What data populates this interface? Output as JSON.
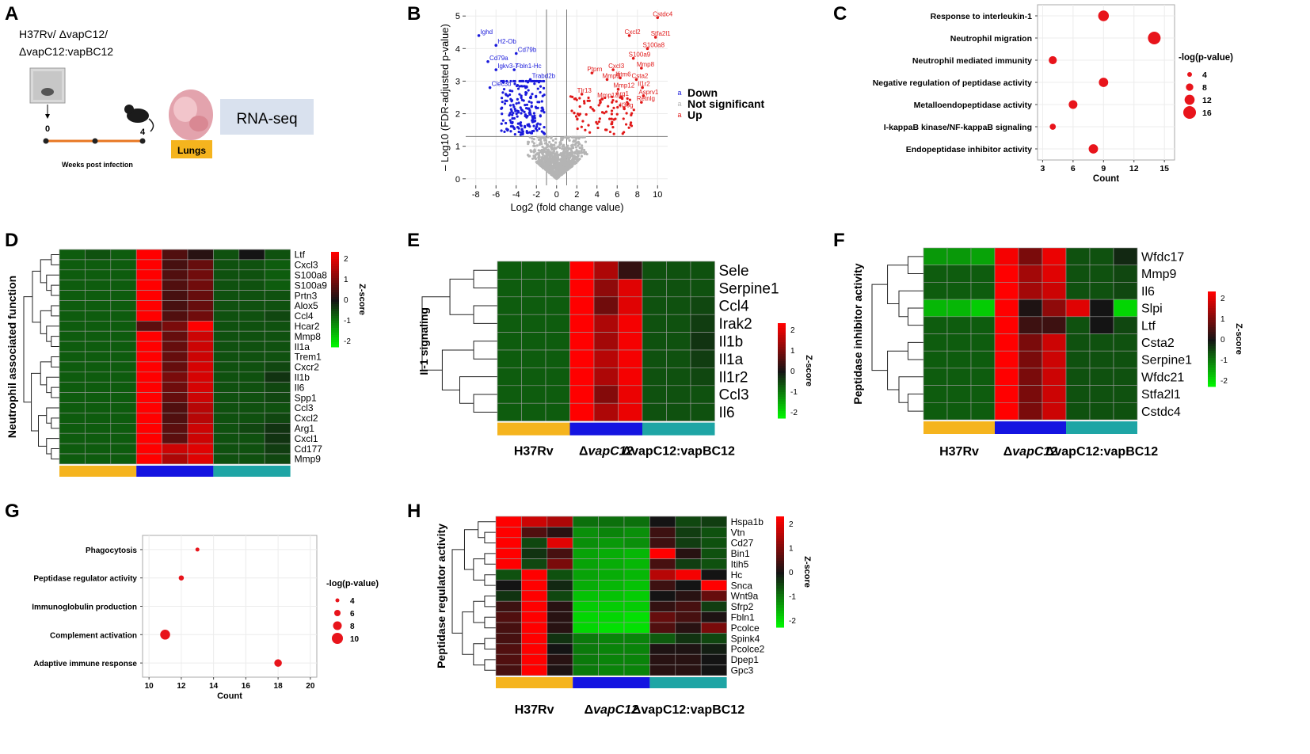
{
  "panels": {
    "A": {
      "label": "A",
      "strains": [
        "H37Rv/ ΔvapC12/",
        "ΔvapC12:vapBC12"
      ],
      "timeline": {
        "start": "0",
        "end": "4",
        "axis_label": "Weeks post infection"
      },
      "organ_label": "Lungs",
      "assay_label": "RNA-seq"
    },
    "B": {
      "label": "B",
      "title": "",
      "xlabel": "Log2 (fold change value)",
      "ylabel": "– Log10 (FDR-adjusted p-value)",
      "x_ticks": [
        "-8",
        "-6",
        "-4",
        "-2",
        "0",
        "2",
        "4",
        "6",
        "8",
        "10"
      ],
      "y_ticks": [
        "0",
        "1",
        "2",
        "3",
        "4",
        "5"
      ],
      "legend": [
        {
          "name": "Down",
          "color": "#1a1adb"
        },
        {
          "name": "Not significant",
          "color": "#b4b4b4"
        },
        {
          "name": "Up",
          "color": "#e11919"
        }
      ],
      "down_genes": [
        {
          "name": "Ighd",
          "x": -7.7,
          "y": 4.4
        },
        {
          "name": "H2-Ob",
          "x": -6.0,
          "y": 4.1
        },
        {
          "name": "Cd79b",
          "x": -4.0,
          "y": 3.85
        },
        {
          "name": "Cd79a",
          "x": -6.8,
          "y": 3.6
        },
        {
          "name": "Igkv3-7",
          "x": -6.0,
          "y": 3.35
        },
        {
          "name": "Fbln1-Hc",
          "x": -4.2,
          "y": 3.35
        },
        {
          "name": "Trabd2b",
          "x": -2.6,
          "y": 3.05
        },
        {
          "name": "Clec3b",
          "x": -6.6,
          "y": 2.8
        }
      ],
      "up_genes": [
        {
          "name": "Cstdc4",
          "x": 10.0,
          "y": 4.95
        },
        {
          "name": "Cxcl2",
          "x": 7.2,
          "y": 4.4
        },
        {
          "name": "Stfa2l1",
          "x": 9.8,
          "y": 4.35
        },
        {
          "name": "S100a8",
          "x": 9.0,
          "y": 4.0
        },
        {
          "name": "S100a9",
          "x": 7.6,
          "y": 3.7
        },
        {
          "name": "Mmp8",
          "x": 8.4,
          "y": 3.4
        },
        {
          "name": "Ptprn",
          "x": 3.5,
          "y": 3.25
        },
        {
          "name": "Cxcl3",
          "x": 5.6,
          "y": 3.35
        },
        {
          "name": "Mmp9",
          "x": 5.0,
          "y": 3.05
        },
        {
          "name": "Ifitm6",
          "x": 6.3,
          "y": 3.1
        },
        {
          "name": "Csta2",
          "x": 7.9,
          "y": 3.05
        },
        {
          "name": "Il1r2",
          "x": 8.5,
          "y": 2.8
        },
        {
          "name": "Mmp12",
          "x": 6.1,
          "y": 2.75
        },
        {
          "name": "Tlr13",
          "x": 2.5,
          "y": 2.6
        },
        {
          "name": "Mmp13",
          "x": 4.5,
          "y": 2.45
        },
        {
          "name": "Arg1",
          "x": 6.3,
          "y": 2.5
        },
        {
          "name": "Asprv1",
          "x": 8.6,
          "y": 2.55
        },
        {
          "name": "Retnlg",
          "x": 8.4,
          "y": 2.35
        },
        {
          "name": "Il36g",
          "x": 6.7,
          "y": 2.15
        }
      ]
    },
    "C": {
      "label": "C",
      "chart_data": {
        "type": "scatter",
        "categories": [
          "Response to interleukin-1",
          "Neutrophil migration",
          "Neutrophil mediated immunity",
          "Negative regulation of peptidase activity",
          "Metalloendopeptidase activity",
          "I-kappaB kinase/NF-kappaB signaling",
          "Endopeptidase inhibitor activity"
        ],
        "counts": [
          9,
          14,
          4,
          9,
          6,
          4,
          8
        ],
        "neg_log_p": [
          13,
          16,
          9,
          11,
          10,
          6,
          11
        ],
        "xlabel": "Count",
        "x_ticks": [
          "3",
          "6",
          "9",
          "12",
          "15"
        ],
        "xlim": [
          2.5,
          16
        ],
        "legend_title": "-log(p-value)",
        "legend_values": [
          "4",
          "8",
          "12",
          "16"
        ]
      }
    },
    "D": {
      "label": "D",
      "ylabel": "Neutrophil associated function",
      "genes": [
        "Ltf",
        "Cxcl3",
        "S100a8",
        "S100a9",
        "Prtn3",
        "Alox5",
        "Ccl4",
        "Hcar2",
        "Mmp8",
        "Il1a",
        "Trem1",
        "Cxcr2",
        "Il1b",
        "Il6",
        "Spp1",
        "Ccl3",
        "Cxcl2",
        "Arg1",
        "Cxcl1",
        "Cd177",
        "Mmp9"
      ],
      "values": [
        [
          -0.7,
          -0.6,
          -0.7,
          2.4,
          0.6,
          0.2,
          -0.6,
          0.0,
          -0.6
        ],
        [
          -0.7,
          -0.7,
          -0.7,
          2.3,
          0.5,
          0.8,
          -0.6,
          -0.6,
          -0.7
        ],
        [
          -0.7,
          -0.7,
          -0.7,
          2.3,
          0.6,
          0.9,
          -0.6,
          -0.6,
          -0.7
        ],
        [
          -0.7,
          -0.7,
          -0.7,
          2.3,
          0.6,
          0.9,
          -0.6,
          -0.6,
          -0.7
        ],
        [
          -0.7,
          -0.7,
          -0.7,
          2.3,
          0.5,
          0.8,
          -0.6,
          -0.6,
          -0.6
        ],
        [
          -0.7,
          -0.7,
          -0.7,
          2.3,
          0.5,
          0.8,
          -0.6,
          -0.6,
          -0.6
        ],
        [
          -0.7,
          -0.7,
          -0.7,
          2.3,
          0.6,
          0.9,
          -0.6,
          -0.6,
          -0.5
        ],
        [
          -0.7,
          -0.7,
          -0.7,
          0.7,
          1.0,
          2.3,
          -0.6,
          -0.6,
          -0.6
        ],
        [
          -0.7,
          -0.7,
          -0.7,
          2.3,
          0.8,
          1.8,
          -0.6,
          -0.6,
          -0.6
        ],
        [
          -0.7,
          -0.7,
          -0.7,
          2.3,
          0.8,
          1.8,
          -0.6,
          -0.6,
          -0.6
        ],
        [
          -0.7,
          -0.7,
          -0.7,
          2.3,
          0.8,
          1.8,
          -0.6,
          -0.6,
          -0.6
        ],
        [
          -0.7,
          -0.7,
          -0.7,
          2.3,
          0.8,
          1.9,
          -0.6,
          -0.6,
          -0.5
        ],
        [
          -0.7,
          -0.7,
          -0.7,
          2.3,
          1.0,
          1.9,
          -0.6,
          -0.6,
          -0.3
        ],
        [
          -0.7,
          -0.7,
          -0.7,
          2.3,
          0.9,
          1.9,
          -0.6,
          -0.6,
          -0.5
        ],
        [
          -0.7,
          -0.7,
          -0.7,
          2.3,
          0.8,
          1.8,
          -0.6,
          -0.6,
          -0.5
        ],
        [
          -0.7,
          -0.7,
          -0.7,
          2.3,
          0.6,
          1.6,
          -0.6,
          -0.6,
          -0.6
        ],
        [
          -0.7,
          -0.7,
          -0.7,
          2.3,
          0.6,
          1.6,
          -0.6,
          -0.6,
          -0.5
        ],
        [
          -0.7,
          -0.7,
          -0.7,
          2.3,
          0.7,
          1.8,
          -0.6,
          -0.5,
          -0.3
        ],
        [
          -0.7,
          -0.7,
          -0.7,
          2.3,
          0.7,
          1.8,
          -0.6,
          -0.6,
          -0.3
        ],
        [
          -0.7,
          -0.7,
          -0.7,
          2.3,
          1.8,
          2.0,
          -0.6,
          -0.6,
          -0.4
        ],
        [
          -0.7,
          -0.7,
          -0.7,
          2.3,
          1.5,
          2.0,
          -0.6,
          -0.6,
          -0.5
        ]
      ],
      "legend_title": "Z-score",
      "legend_ticks": [
        "2",
        "1",
        "0",
        "-1",
        "-2"
      ],
      "groups": [
        {
          "name": "H37Rv",
          "italic": "",
          "color": "#f5b41e"
        },
        {
          "name": "Δ",
          "italic": "vapC12",
          "color": "#1414e1"
        },
        {
          "name": "ΔvapC12:vapBC12",
          "italic": "",
          "color": "#1ea5a5"
        }
      ]
    },
    "E": {
      "label": "E",
      "ylabel": "Il-1 signaling",
      "genes": [
        "Sele",
        "Serpine1",
        "Ccl4",
        "Irak2",
        "Il1b",
        "Il1a",
        "Il1r2",
        "Ccl3",
        "Il6"
      ],
      "values": [
        [
          -0.7,
          -0.7,
          -0.7,
          2.3,
          1.5,
          0.3,
          -0.6,
          -0.6,
          -0.6
        ],
        [
          -0.7,
          -0.7,
          -0.7,
          2.3,
          1.2,
          2.0,
          -0.6,
          -0.6,
          -0.6
        ],
        [
          -0.7,
          -0.7,
          -0.7,
          2.3,
          0.9,
          2.0,
          -0.6,
          -0.6,
          -0.5
        ],
        [
          -0.7,
          -0.7,
          -0.7,
          2.3,
          1.5,
          2.2,
          -0.6,
          -0.6,
          -0.4
        ],
        [
          -0.7,
          -0.7,
          -0.7,
          2.3,
          1.4,
          2.2,
          -0.6,
          -0.6,
          -0.3
        ],
        [
          -0.7,
          -0.7,
          -0.7,
          2.3,
          1.6,
          2.2,
          -0.6,
          -0.6,
          -0.4
        ],
        [
          -0.7,
          -0.7,
          -0.7,
          2.3,
          1.5,
          2.2,
          -0.6,
          -0.6,
          -0.5
        ],
        [
          -0.7,
          -0.7,
          -0.7,
          2.3,
          1.1,
          2.1,
          -0.6,
          -0.6,
          -0.6
        ],
        [
          -0.7,
          -0.7,
          -0.7,
          2.3,
          1.5,
          2.1,
          -0.6,
          -0.6,
          -0.6
        ]
      ],
      "legend_title": "Z-score",
      "legend_ticks": [
        "2",
        "1",
        "0",
        "-1",
        "-2"
      ],
      "groups": [
        {
          "name": "H37Rv",
          "italic": "",
          "color": "#f5b41e"
        },
        {
          "name": "Δ",
          "italic": "vapC12",
          "color": "#1414e1"
        },
        {
          "name": "ΔvapC12:vapBC12",
          "italic": "",
          "color": "#1ea5a5"
        }
      ]
    },
    "F": {
      "label": "F",
      "ylabel": "Peptidase inhibitor activity",
      "genes": [
        "Wfdc17",
        "Mmp9",
        "Il6",
        "Slpi",
        "Ltf",
        "Csta2",
        "Serpine1",
        "Wfdc21",
        "Stfa2l1",
        "Cstdc4"
      ],
      "values": [
        [
          -1.3,
          -1.3,
          -1.4,
          2.2,
          1.0,
          2.1,
          -0.6,
          -0.6,
          -0.2
        ],
        [
          -0.7,
          -0.7,
          -0.7,
          2.3,
          1.4,
          2.0,
          -0.6,
          -0.6,
          -0.5
        ],
        [
          -0.7,
          -0.7,
          -0.7,
          2.3,
          1.4,
          1.8,
          -0.6,
          -0.6,
          -0.5
        ],
        [
          -1.6,
          -1.6,
          -1.8,
          2.3,
          0.1,
          1.2,
          2.0,
          0.0,
          -1.9
        ],
        [
          -0.7,
          -0.7,
          -0.7,
          2.3,
          0.4,
          0.4,
          -0.6,
          0.0,
          -0.5
        ],
        [
          -0.7,
          -0.7,
          -0.7,
          2.3,
          1.0,
          1.8,
          -0.6,
          -0.6,
          -0.6
        ],
        [
          -0.7,
          -0.7,
          -0.7,
          2.3,
          1.0,
          1.8,
          -0.6,
          -0.6,
          -0.6
        ],
        [
          -0.7,
          -0.7,
          -0.7,
          2.3,
          1.0,
          1.8,
          -0.6,
          -0.6,
          -0.6
        ],
        [
          -0.7,
          -0.7,
          -0.7,
          2.3,
          1.0,
          1.8,
          -0.6,
          -0.6,
          -0.6
        ],
        [
          -0.7,
          -0.7,
          -0.7,
          2.3,
          1.0,
          1.8,
          -0.6,
          -0.6,
          -0.6
        ]
      ],
      "legend_title": "Z-score",
      "legend_ticks": [
        "2",
        "1",
        "0",
        "-1",
        "-2"
      ],
      "groups": [
        {
          "name": "H37Rv",
          "italic": "",
          "color": "#f5b41e"
        },
        {
          "name": "Δ",
          "italic": "vapC12",
          "color": "#1414e1"
        },
        {
          "name": "ΔvapC12:vapBC12",
          "italic": "",
          "color": "#1ea5a5"
        }
      ]
    },
    "G": {
      "label": "G",
      "chart_data": {
        "type": "scatter",
        "categories": [
          "Phagocytosis",
          "Peptidase regulator activity",
          "Immunoglobulin production",
          "Complement activation",
          "Adaptive immune response"
        ],
        "counts": [
          13,
          12,
          null,
          11,
          18
        ],
        "neg_log_p": [
          4,
          5,
          null,
          9,
          7
        ],
        "xlabel": "Count",
        "x_ticks": [
          "10",
          "12",
          "14",
          "16",
          "18",
          "20"
        ],
        "xlim": [
          9.6,
          20.4
        ],
        "legend_title": "-log(p-value)",
        "legend_values": [
          "4",
          "6",
          "8",
          "10"
        ]
      }
    },
    "H": {
      "label": "H",
      "ylabel": "Peptidase regulator activity",
      "genes": [
        "Hspa1b",
        "Vtn",
        "Cd27",
        "Bin1",
        "Itih5",
        "Hc",
        "Snca",
        "Wnt9a",
        "Sfrp2",
        "Fbln1",
        "Pcolce",
        "Spink4",
        "Pcolce2",
        "Dpep1",
        "Gpc3"
      ],
      "values": [
        [
          2.3,
          1.8,
          1.5,
          -0.9,
          -0.9,
          -0.9,
          0.0,
          -0.5,
          -0.4
        ],
        [
          2.3,
          0.6,
          0.2,
          -1.2,
          -1.1,
          -1.2,
          0.4,
          -0.4,
          -0.6
        ],
        [
          2.3,
          -0.5,
          2.0,
          -1.2,
          -1.3,
          -1.2,
          0.4,
          -0.4,
          -0.6
        ],
        [
          2.3,
          -0.3,
          0.5,
          -1.4,
          -1.5,
          -1.6,
          2.3,
          0.2,
          -0.6
        ],
        [
          2.3,
          -0.5,
          1.0,
          -1.4,
          -1.5,
          -1.6,
          0.5,
          -0.4,
          -0.6
        ],
        [
          -0.6,
          2.3,
          -0.6,
          -1.4,
          -1.5,
          -1.6,
          1.6,
          2.2,
          0.0
        ],
        [
          0.0,
          2.3,
          -0.2,
          -1.5,
          -1.6,
          -1.7,
          0.4,
          0.0,
          2.3
        ],
        [
          -0.3,
          2.3,
          -0.5,
          -1.7,
          -1.7,
          -1.8,
          0.0,
          0.2,
          0.8
        ],
        [
          0.4,
          2.3,
          0.2,
          -1.8,
          -1.8,
          -1.8,
          0.3,
          0.5,
          -0.4
        ],
        [
          0.6,
          2.3,
          0.2,
          -1.9,
          -1.9,
          -2.0,
          0.8,
          0.5,
          0.1
        ],
        [
          0.5,
          2.3,
          0.2,
          -1.9,
          -2.0,
          -2.0,
          0.6,
          0.2,
          1.0
        ],
        [
          0.5,
          2.3,
          -0.3,
          -1.0,
          -1.1,
          -1.1,
          -0.7,
          -0.3,
          -0.5
        ],
        [
          0.6,
          2.3,
          0.0,
          -1.0,
          -1.1,
          -1.1,
          0.1,
          0.1,
          -0.1
        ],
        [
          0.6,
          2.3,
          0.2,
          -1.0,
          -1.1,
          -1.1,
          0.2,
          0.2,
          0.0
        ],
        [
          0.5,
          2.3,
          0.1,
          -1.0,
          -1.1,
          -1.1,
          0.2,
          0.2,
          0.0
        ]
      ],
      "legend_title": "Z-score",
      "legend_ticks": [
        "2",
        "1",
        "0",
        "-1",
        "-2"
      ],
      "groups": [
        {
          "name": "H37Rv",
          "italic": "",
          "color": "#f5b41e"
        },
        {
          "name": "Δ",
          "italic": "vapC12",
          "color": "#1414e1"
        },
        {
          "name": "ΔvapC12:vapBC12",
          "italic": "",
          "color": "#1ea5a5"
        }
      ]
    }
  }
}
